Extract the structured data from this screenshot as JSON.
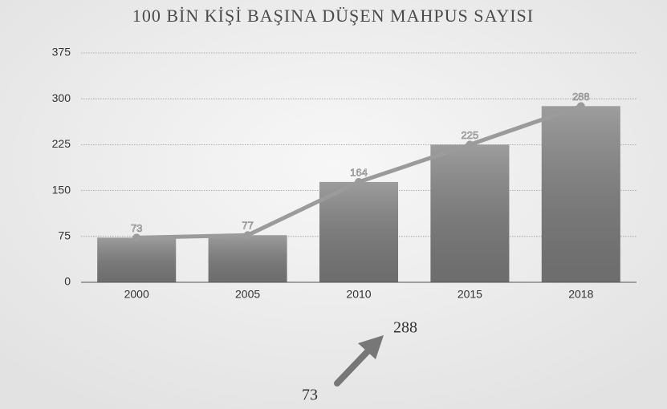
{
  "chart_data": {
    "type": "bar",
    "title": "100 BİN KİŞİ BAŞINA DÜŞEN MAHPUS SAYISI",
    "categories": [
      "2000",
      "2005",
      "2010",
      "2015",
      "2018"
    ],
    "values": [
      73,
      77,
      164,
      225,
      288
    ],
    "color": "#7c7c7c",
    "line_overlay": true,
    "line_color": "#9b9b9b",
    "ylim": [
      0,
      375
    ],
    "yticks": [
      0,
      75,
      150,
      225,
      300,
      375
    ],
    "grid": true,
    "annotations": [
      "288",
      "73"
    ]
  }
}
